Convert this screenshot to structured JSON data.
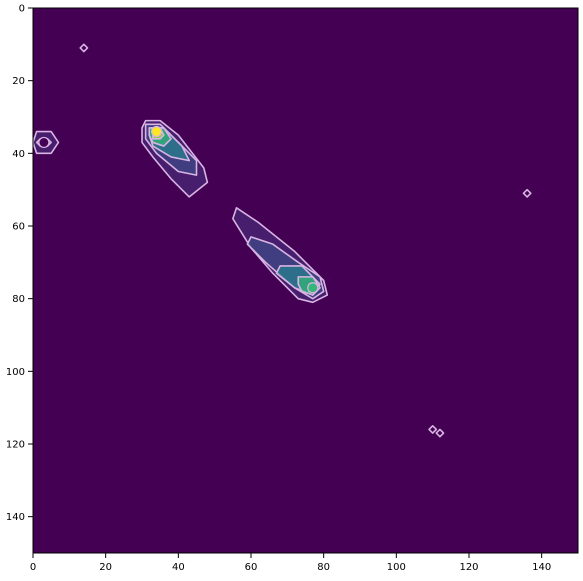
{
  "chart_data": {
    "type": "heatmap",
    "title": "",
    "xlabel": "",
    "ylabel": "",
    "xlim": [
      0,
      150
    ],
    "ylim": [
      150,
      0
    ],
    "x_ticks": [
      "0",
      "20",
      "40",
      "60",
      "80",
      "100",
      "120",
      "140"
    ],
    "y_ticks": [
      "0",
      "20",
      "40",
      "60",
      "80",
      "100",
      "120",
      "140"
    ],
    "background_color": "#440154",
    "contour_color": "#d8b4e2",
    "colormap": "viridis",
    "grid": false,
    "features": [
      {
        "center": [
          34,
          34
        ],
        "peak_color": "#fde725",
        "contours": [
          {
            "points": [
              [
                31,
                31
              ],
              [
                35,
                31
              ],
              [
                40,
                35
              ],
              [
                47,
                44
              ],
              [
                48,
                48
              ],
              [
                43,
                52
              ],
              [
                38,
                47
              ],
              [
                33,
                41
              ],
              [
                30,
                37
              ],
              [
                30,
                33
              ]
            ]
          },
          {
            "points": [
              [
                31,
                32
              ],
              [
                35,
                32
              ],
              [
                40,
                37
              ],
              [
                45,
                42
              ],
              [
                45,
                46
              ],
              [
                40,
                45
              ],
              [
                34,
                40
              ],
              [
                31,
                36
              ]
            ]
          },
          {
            "points": [
              [
                32,
                33
              ],
              [
                36,
                33
              ],
              [
                41,
                38
              ],
              [
                43,
                42
              ],
              [
                38,
                41
              ],
              [
                33,
                38
              ],
              [
                32,
                35
              ]
            ]
          },
          {
            "points": [
              [
                32,
                33
              ],
              [
                36,
                33
              ],
              [
                38,
                36
              ],
              [
                36,
                38
              ],
              [
                33,
                37
              ],
              [
                32,
                35
              ]
            ]
          },
          {
            "points": [
              [
                33,
                33
              ],
              [
                35,
                33
              ],
              [
                36,
                35
              ],
              [
                35,
                36
              ],
              [
                33,
                36
              ],
              [
                33,
                34
              ]
            ]
          }
        ]
      },
      {
        "center": [
          77,
          77
        ],
        "peak_color": "#35b779",
        "contours": [
          {
            "points": [
              [
                56,
                55
              ],
              [
                62,
                59
              ],
              [
                72,
                67
              ],
              [
                80,
                75
              ],
              [
                81,
                79
              ],
              [
                77,
                81
              ],
              [
                73,
                80
              ],
              [
                66,
                73
              ],
              [
                60,
                66
              ],
              [
                55,
                58
              ]
            ]
          },
          {
            "points": [
              [
                60,
                63
              ],
              [
                66,
                65
              ],
              [
                73,
                70
              ],
              [
                79,
                74
              ],
              [
                80,
                78
              ],
              [
                77,
                80
              ],
              [
                72,
                77
              ],
              [
                64,
                70
              ],
              [
                59,
                65
              ]
            ]
          },
          {
            "points": [
              [
                68,
                71
              ],
              [
                74,
                71
              ],
              [
                79,
                76
              ],
              [
                77,
                79
              ],
              [
                72,
                77
              ],
              [
                67,
                73
              ]
            ]
          },
          {
            "points": [
              [
                73,
                74
              ],
              [
                77,
                74
              ],
              [
                79,
                77
              ],
              [
                77,
                79
              ],
              [
                74,
                78
              ],
              [
                73,
                76
              ]
            ]
          },
          {
            "points": [
              [
                76,
                76
              ],
              [
                78,
                76
              ],
              [
                78,
                78
              ],
              [
                76,
                78
              ]
            ]
          }
        ]
      },
      {
        "center": [
          3,
          37
        ],
        "peak_color": "#440154",
        "contours": [
          {
            "points": [
              [
                1,
                34
              ],
              [
                5,
                34
              ],
              [
                7,
                37
              ],
              [
                5,
                40
              ],
              [
                1,
                40
              ],
              [
                0,
                37
              ]
            ]
          },
          {
            "points": [
              [
                2,
                36
              ],
              [
                4,
                36
              ],
              [
                5,
                37
              ],
              [
                4,
                38
              ],
              [
                2,
                38
              ],
              [
                1,
                37
              ]
            ]
          },
          {
            "points": [
              [
                3,
                36.5
              ],
              [
                4,
                37
              ],
              [
                3,
                37.5
              ],
              [
                2.5,
                37
              ]
            ]
          }
        ]
      },
      {
        "center": [
          14,
          11
        ],
        "peak_color": "#440154",
        "contours": [
          {
            "points": [
              [
                14,
                10
              ],
              [
                15,
                11
              ],
              [
                14,
                12
              ],
              [
                13,
                11
              ]
            ]
          }
        ]
      },
      {
        "center": [
          136,
          51
        ],
        "peak_color": "#440154",
        "contours": [
          {
            "points": [
              [
                136,
                50
              ],
              [
                137,
                51
              ],
              [
                136,
                52
              ],
              [
                135,
                51
              ]
            ]
          }
        ]
      },
      {
        "center": [
          110,
          116
        ],
        "peak_color": "#440154",
        "contours": [
          {
            "points": [
              [
                110,
                115
              ],
              [
                111,
                116
              ],
              [
                110,
                117
              ],
              [
                109,
                116
              ]
            ]
          }
        ]
      },
      {
        "center": [
          112,
          117
        ],
        "peak_color": "#440154",
        "contours": [
          {
            "points": [
              [
                112,
                116
              ],
              [
                113,
                117
              ],
              [
                112,
                118
              ],
              [
                111,
                117
              ]
            ]
          }
        ]
      }
    ]
  }
}
